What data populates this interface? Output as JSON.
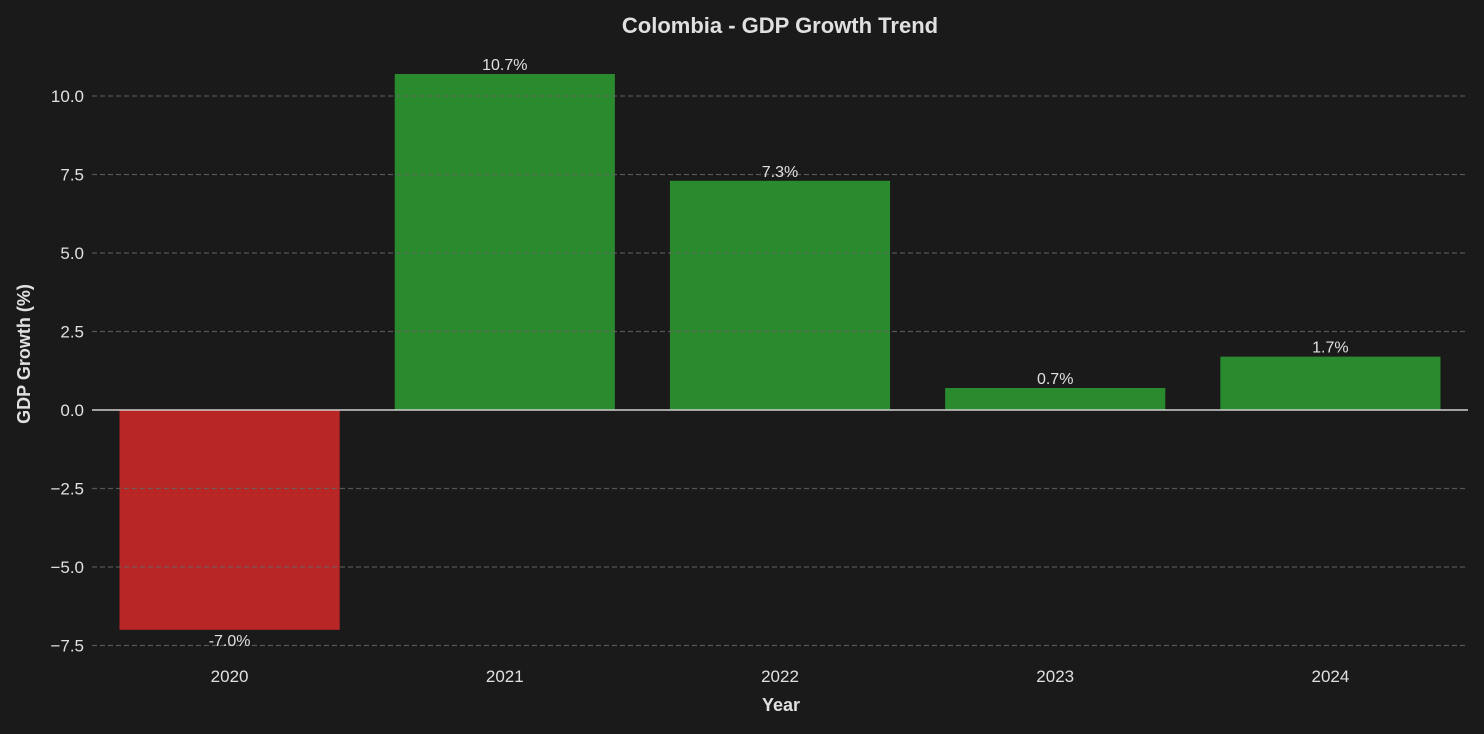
{
  "chart_data": {
    "type": "bar",
    "title": "Colombia - GDP Growth Trend",
    "xlabel": "Year",
    "ylabel": "GDP Growth (%)",
    "categories": [
      "2020",
      "2021",
      "2022",
      "2023",
      "2024"
    ],
    "values": [
      -7.0,
      10.7,
      7.3,
      0.7,
      1.7
    ],
    "data_labels": [
      "-7.0%",
      "10.7%",
      "7.3%",
      "0.7%",
      "1.7%"
    ],
    "yticks": [
      -7.5,
      -5.0,
      -2.5,
      0.0,
      2.5,
      5.0,
      7.5,
      10.0
    ],
    "ytick_labels": [
      "−7.5",
      "−5.0",
      "−2.5",
      "0.0",
      "2.5",
      "5.0",
      "7.5",
      "10.0"
    ],
    "ylim": [
      -8.0,
      11.3
    ],
    "grid": "y, dashed",
    "legend": "none",
    "colors": {
      "positive": "#2a8a2e",
      "negative": "#b82626",
      "background": "#1a1a1a",
      "text": "#e0e0e0",
      "grid": "#666666",
      "zero_line": "#d0d0d0"
    }
  }
}
